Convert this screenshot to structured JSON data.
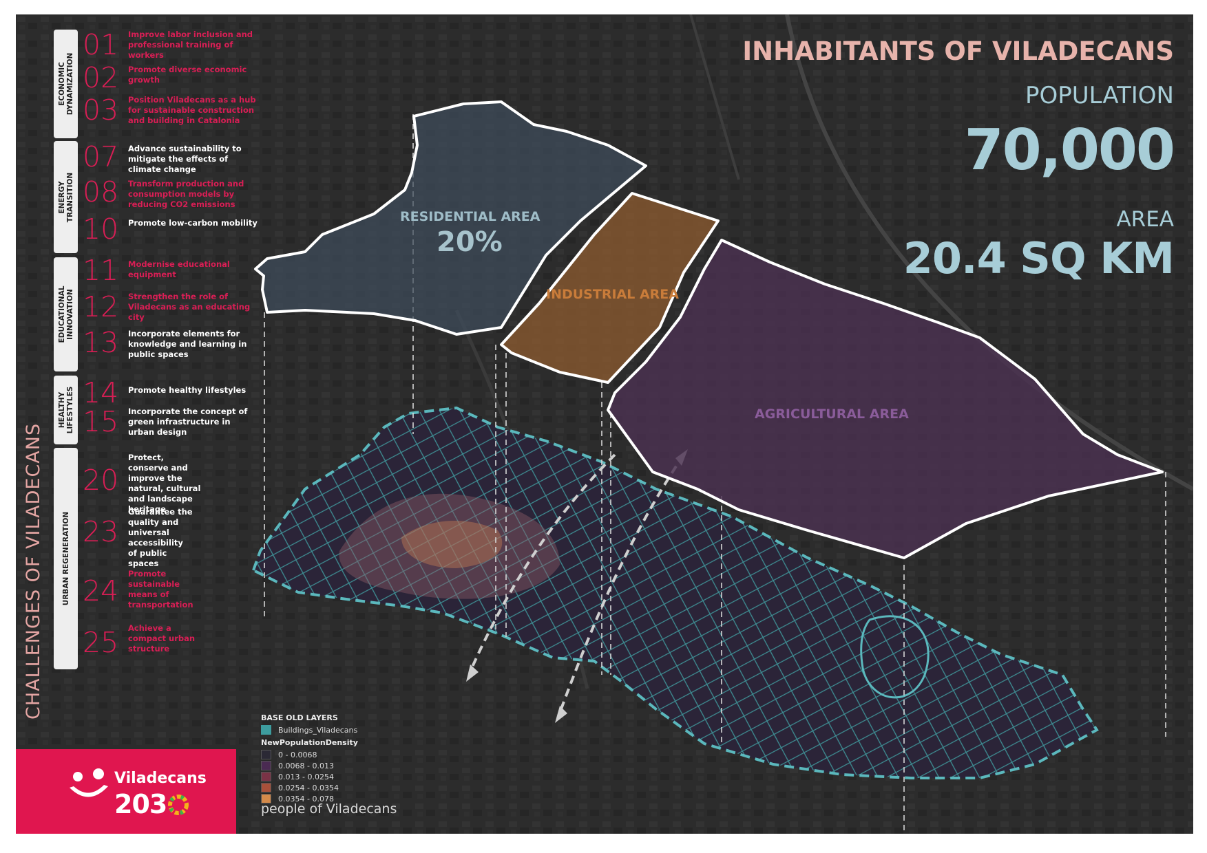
{
  "side_title": "CHALLENGES OF VILADECANS",
  "categories": [
    {
      "label_line1": "ECONOMIC",
      "label_line2": "DYNAMIZATION"
    },
    {
      "label_line1": "ENERGY",
      "label_line2": "TRANSITION"
    },
    {
      "label_line1": "EDUCATIONAL",
      "label_line2": "INNOVATION"
    },
    {
      "label_line1": "HEALTHY",
      "label_line2": "LIFESTYLES"
    },
    {
      "label_line1": "URBAN REGENERATION",
      "label_line2": ""
    }
  ],
  "challenges": [
    {
      "number": "01",
      "text": "Improve labor inclusion and professional training of workers"
    },
    {
      "number": "02",
      "text": "Promote diverse economic growth"
    },
    {
      "number": "03",
      "text": "Position Viladecans as a hub for sustainable construction and building in Catalonia"
    },
    {
      "number": "07",
      "text": "Advance sustainability to mitigate the effects of climate change"
    },
    {
      "number": "08",
      "text": "Transform production and consumption models by reducing CO2 emissions"
    },
    {
      "number": "10",
      "text": "Promote low-carbon mobility"
    },
    {
      "number": "11",
      "text": "Modernise educational equipment"
    },
    {
      "number": "12",
      "text": "Strengthen the role of Viladecans as an educating city"
    },
    {
      "number": "13",
      "text": "Incorporate elements for knowledge and learning in public spaces"
    },
    {
      "number": "14",
      "text": "Promote healthy lifestyles"
    },
    {
      "number": "15",
      "text": "Incorporate the concept of green infrastructure in urban design"
    },
    {
      "number": "20",
      "text": "Protect, conserve and improve the natural, cultural and landscape heritage"
    },
    {
      "number": "23",
      "text": "Guarantee the quality and universal accessibility of public spaces"
    },
    {
      "number": "24",
      "text": "Promote sustainable means of transportation"
    },
    {
      "number": "25",
      "text": "Achieve a compact urban structure"
    }
  ],
  "logo": {
    "name": "Viladecans",
    "year": "203"
  },
  "header": {
    "title": "INHABITANTS OF VILADECANS",
    "population_label": "POPULATION",
    "population_value": "70,000",
    "area_label": "AREA",
    "area_value": "20.4 SQ KM"
  },
  "zones": {
    "residential_label": "RESIDENTIAL AREA",
    "residential_pct": "20%",
    "industrial_label": "INDUSTRIAL AREA",
    "agricultural_label": "AGRICULTURAL AREA"
  },
  "legend": {
    "group1_title": "BASE OLD LAYERS",
    "buildings_label": "Buildings_Viladecans",
    "group2_title": "NewPopulationDensity",
    "classes": [
      {
        "range": "0 - 0.0068",
        "color": "#2b2935"
      },
      {
        "range": "0.0068 - 0.013",
        "color": "#4a2a52"
      },
      {
        "range": "0.013 - 0.0254",
        "color": "#7a3346"
      },
      {
        "range": "0.0254 - 0.0354",
        "color": "#a8503a"
      },
      {
        "range": "0.0354 - 0.078",
        "color": "#d48a4a"
      }
    ]
  },
  "footer": "people of Viladecans",
  "colors": {
    "accent_red": "#d91e55",
    "residential": "#3e4c5c",
    "industrial": "#8a5a30",
    "agricultural": "#4a3150",
    "buildings": "#3d9c9e",
    "stat_blue": "#a7cdd7",
    "title_pink": "#e7b3ab"
  }
}
